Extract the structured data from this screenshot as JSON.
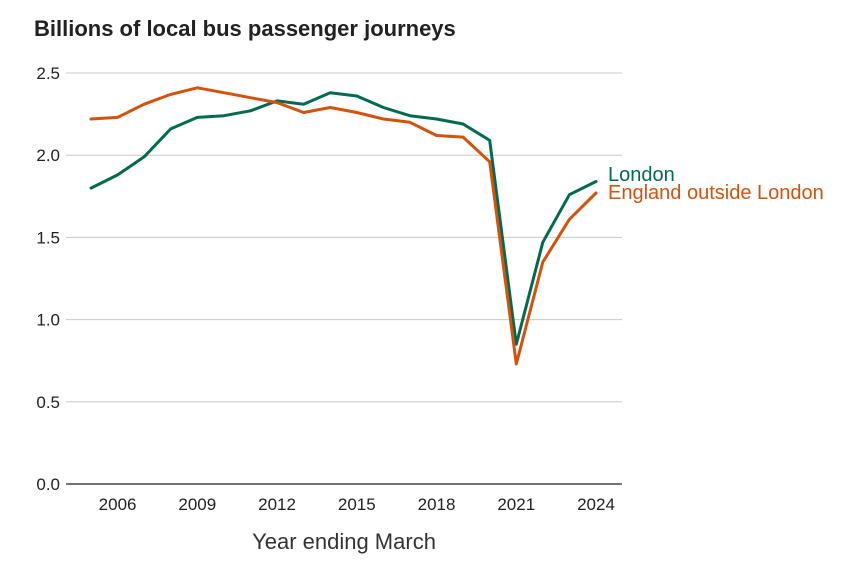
{
  "chart_data": {
    "type": "line",
    "title": "Billions of local bus passenger journeys",
    "xlabel": "Year ending March",
    "ylabel": "",
    "xlim": [
      2005,
      2024
    ],
    "ylim": [
      0,
      2.5
    ],
    "yticks": [
      0.0,
      0.5,
      1.0,
      1.5,
      2.0,
      2.5
    ],
    "ytick_labels": [
      "0.0",
      "0.5",
      "1.0",
      "1.5",
      "2.0",
      "2.5"
    ],
    "xticks": [
      2006,
      2009,
      2012,
      2015,
      2018,
      2021,
      2024
    ],
    "xtick_labels": [
      "2006",
      "2009",
      "2012",
      "2015",
      "2018",
      "2021",
      "2024"
    ],
    "grid": true,
    "x": [
      2005,
      2006,
      2007,
      2008,
      2009,
      2010,
      2011,
      2012,
      2013,
      2014,
      2015,
      2016,
      2017,
      2018,
      2019,
      2020,
      2021,
      2022,
      2023,
      2024
    ],
    "series": [
      {
        "name": "London",
        "color": "#006b4f",
        "values": [
          1.8,
          1.88,
          1.99,
          2.16,
          2.23,
          2.24,
          2.27,
          2.33,
          2.31,
          2.38,
          2.36,
          2.29,
          2.24,
          2.22,
          2.19,
          2.09,
          0.85,
          1.47,
          1.76,
          1.84
        ]
      },
      {
        "name": "England outside London",
        "color": "#d4520c",
        "values": [
          2.22,
          2.23,
          2.31,
          2.37,
          2.41,
          2.38,
          2.35,
          2.32,
          2.26,
          2.29,
          2.26,
          2.22,
          2.2,
          2.12,
          2.11,
          1.96,
          0.73,
          1.35,
          1.61,
          1.77
        ]
      }
    ]
  }
}
